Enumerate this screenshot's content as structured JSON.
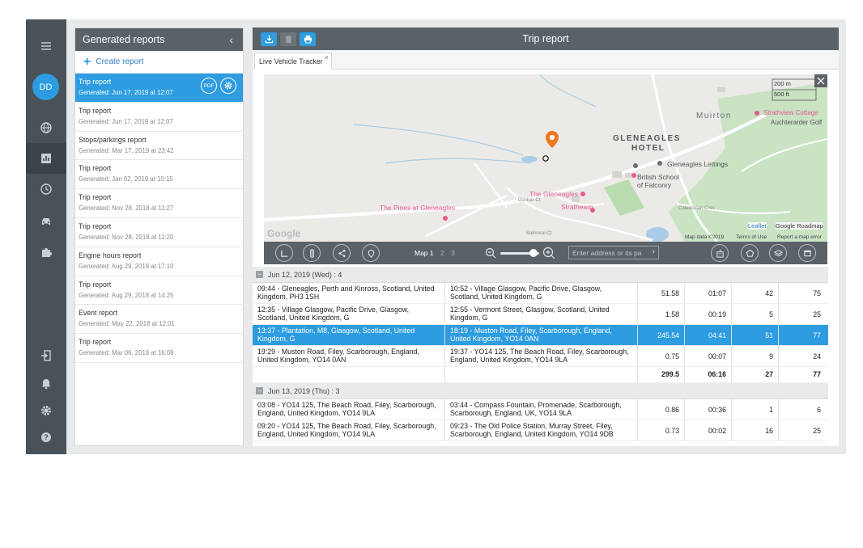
{
  "rail": {
    "avatar_initials": "DD"
  },
  "sidebar": {
    "title": "Generated reports",
    "collapse_glyph": "‹",
    "create_label": "Create report",
    "pdf_label": "PDF",
    "reports": [
      {
        "title": "Trip report",
        "generated": "Generated: Jun 17, 2019 at 12:07"
      },
      {
        "title": "Trip report",
        "generated": "Generated: Jun 17, 2019 at 12:07"
      },
      {
        "title": "Stops/parkings report",
        "generated": "Generated: Mar 17, 2019 at 23:42"
      },
      {
        "title": "Trip report",
        "generated": "Generated: Jan 02, 2019 at 10:15"
      },
      {
        "title": "Trip report",
        "generated": "Generated: Nov 28, 2018 at 11:27"
      },
      {
        "title": "Trip report",
        "generated": "Generated: Nov 28, 2018 at 11:20"
      },
      {
        "title": "Engine hours report",
        "generated": "Generated: Aug 29, 2018 at 17:10"
      },
      {
        "title": "Trip report",
        "generated": "Generated: Aug 29, 2018 at 14:25"
      },
      {
        "title": "Event report",
        "generated": "Generated: May 22, 2018 at 12:01"
      },
      {
        "title": "Trip report",
        "generated": "Generated: Mar 06, 2018 at 16:08"
      }
    ]
  },
  "main": {
    "title": "Trip report",
    "tab_label": "Live Vehicle Tracker",
    "tab_close": "×"
  },
  "map": {
    "labels": {
      "scale_m": "200 m",
      "scale_ft": "500 ft",
      "muirton": "Muirton",
      "strathview": "Strathview Cottage",
      "auchterarder": "Auchterarder Golf",
      "gleneagles_hotel_1": "GLENEAGLES",
      "gleneagles_hotel_2": "HOTEL",
      "gleneagles_lettings": "Gleneagles Lettings",
      "british_school_1": "British School",
      "british_school_2": "of Falconry",
      "the_gleneagles": "The Gleneagles",
      "pines": "The Pines at Gleneagles",
      "strathearn": "Strathearn",
      "dunbar": "Dunbar Ct",
      "balmoral": "Balmoral Ct",
      "caledonian": "Caledonian Cres",
      "google": "Google",
      "leaflet": "Leaflet",
      "roadmap": "Google Roadmap",
      "map_data": "Map data ©2019",
      "terms": "Terms of Use",
      "report_error": "Report a map error"
    },
    "toolbar": {
      "map_tab": "Map 1",
      "map_tab2": "2",
      "map_tab3": "3",
      "address_placeholder": "Enter address or its pa"
    }
  },
  "table": {
    "groups": [
      {
        "header": "Jun 12, 2019 (Wed) : 4",
        "rows": [
          {
            "from": "09:44 - Gleneagles, Perth and Kinross, Scotland, United Kingdom, PH3 1SH",
            "to": "10:52 - Village Glasgow, Pacific Drive, Glasgow, Scotland, United Kingdom, G",
            "mileage": "51.58",
            "duration": "01:07",
            "avg": "42",
            "max": "75"
          },
          {
            "from": "12:35 - Village Glasgow, Pacific Drive, Glasgow, Scotland, United Kingdom, G",
            "to": "12:55 - Vermont Street, Glasgow, Scotland, United Kingdom, G",
            "mileage": "1.58",
            "duration": "00:19",
            "avg": "5",
            "max": "25"
          },
          {
            "from": "13:37 - Plantation, M8, Glasgow, Scotland, United Kingdom, G",
            "to": "18:19 - Muston Road, Filey, Scarborough, England, United Kingdom, YO14 0AN",
            "mileage": "245.54",
            "duration": "04:41",
            "avg": "51",
            "max": "77"
          },
          {
            "from": "19:29 - Muston Road, Filey, Scarborough, England, United Kingdom, YO14 0AN",
            "to": "19:37 - YO14 125, The Beach Road, Filey, Scarborough, England, United Kingdom, YO14 9LA",
            "mileage": "0.75",
            "duration": "00:07",
            "avg": "9",
            "max": "24"
          }
        ],
        "total": {
          "mileage": "299.5",
          "duration": "06:16",
          "avg": "27",
          "max": "77"
        }
      },
      {
        "header": "Jun 13, 2019 (Thu) : 3",
        "rows": [
          {
            "from": "03:08 - YO14 125, The Beach Road, Filey, Scarborough, England, United Kingdom, YO14 9LA",
            "to": "03:44 - Compass Fountain, Promenade, Scarborough, Scarborough, England, UK, YO14 9LA",
            "mileage": "0.86",
            "duration": "00:36",
            "avg": "1",
            "max": "6"
          },
          {
            "from": "09:20 - YO14 125, The Beach Road, Filey, Scarborough, England, United Kingdom, YO14 9LA",
            "to": "09:23 - The Old Police Station, Murray Street, Filey, Scarborough, England, United Kingdom, YO14 9DB",
            "mileage": "0.73",
            "duration": "00:02",
            "avg": "16",
            "max": "25"
          }
        ]
      }
    ]
  }
}
